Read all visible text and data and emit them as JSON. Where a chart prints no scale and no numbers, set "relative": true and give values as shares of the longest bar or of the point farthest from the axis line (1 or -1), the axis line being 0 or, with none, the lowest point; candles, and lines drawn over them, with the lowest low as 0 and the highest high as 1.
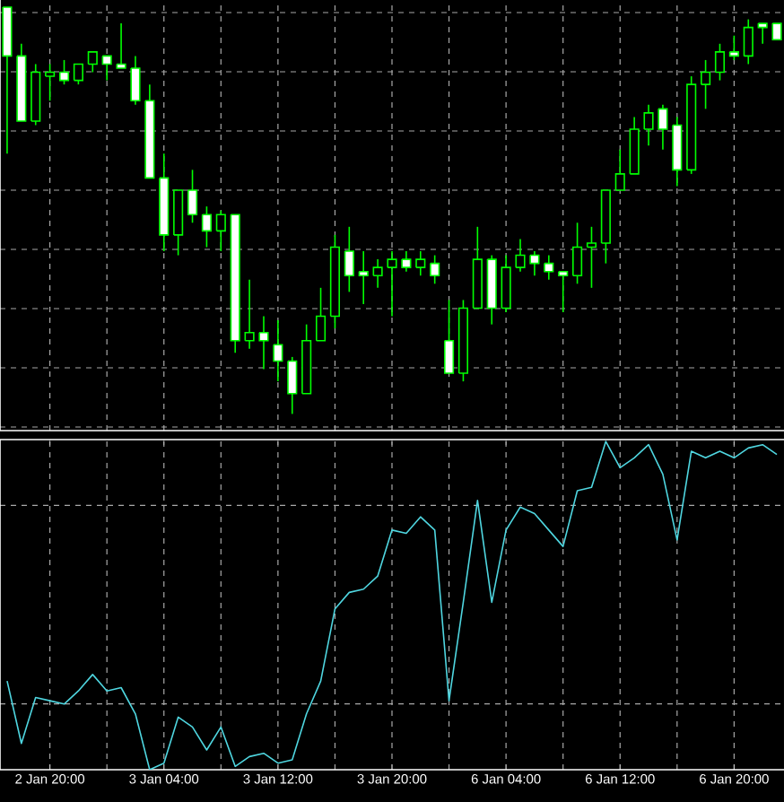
{
  "chart_data": [
    {
      "type": "candlestick",
      "relative": true,
      "color": "#00ff00",
      "grid": true,
      "tick_labels": false,
      "categories": [
        null,
        null,
        null,
        null,
        null,
        null,
        null,
        null,
        null,
        null,
        null,
        null,
        null,
        null,
        null,
        null,
        null,
        null,
        null,
        null,
        null,
        null,
        null,
        null,
        null,
        null,
        null,
        null,
        null,
        null,
        null,
        null,
        null,
        null,
        null,
        null,
        null,
        null,
        null,
        null,
        null,
        null,
        null,
        null,
        null,
        null,
        null,
        null,
        null,
        null,
        null,
        null,
        null,
        null,
        null
      ],
      "ohlc": [
        [
          1.0,
          1.0,
          0.64,
          0.88
        ],
        [
          0.88,
          0.91,
          0.72,
          0.72
        ],
        [
          0.72,
          0.86,
          0.71,
          0.84
        ],
        [
          0.83,
          0.86,
          0.77,
          0.84
        ],
        [
          0.84,
          0.87,
          0.81,
          0.82
        ],
        [
          0.82,
          0.86,
          0.81,
          0.86
        ],
        [
          0.86,
          0.89,
          0.84,
          0.89
        ],
        [
          0.88,
          0.88,
          0.82,
          0.86
        ],
        [
          0.86,
          0.96,
          0.85,
          0.85
        ],
        [
          0.85,
          0.88,
          0.76,
          0.77
        ],
        [
          0.77,
          0.81,
          0.58,
          0.58
        ],
        [
          0.58,
          0.64,
          0.4,
          0.44
        ],
        [
          0.44,
          0.55,
          0.39,
          0.55
        ],
        [
          0.55,
          0.6,
          0.47,
          0.49
        ],
        [
          0.49,
          0.51,
          0.41,
          0.45
        ],
        [
          0.45,
          0.5,
          0.4,
          0.49
        ],
        [
          0.49,
          0.49,
          0.15,
          0.18
        ],
        [
          0.18,
          0.33,
          0.16,
          0.2
        ],
        [
          0.2,
          0.24,
          0.11,
          0.18
        ],
        [
          0.17,
          0.23,
          0.08,
          0.13
        ],
        [
          0.13,
          0.14,
          0.0,
          0.05
        ],
        [
          0.05,
          0.22,
          0.05,
          0.18
        ],
        [
          0.18,
          0.31,
          0.18,
          0.24
        ],
        [
          0.24,
          0.44,
          0.21,
          0.41
        ],
        [
          0.4,
          0.46,
          0.3,
          0.34
        ],
        [
          0.35,
          0.4,
          0.27,
          0.34
        ],
        [
          0.34,
          0.38,
          0.31,
          0.36
        ],
        [
          0.36,
          0.4,
          0.24,
          0.38
        ],
        [
          0.38,
          0.4,
          0.35,
          0.36
        ],
        [
          0.36,
          0.4,
          0.34,
          0.38
        ],
        [
          0.37,
          0.39,
          0.32,
          0.34
        ],
        [
          0.18,
          0.28,
          0.1,
          0.1
        ],
        [
          0.1,
          0.28,
          0.08,
          0.26
        ],
        [
          0.26,
          0.46,
          0.26,
          0.38
        ],
        [
          0.38,
          0.39,
          0.22,
          0.26
        ],
        [
          0.26,
          0.39,
          0.25,
          0.36
        ],
        [
          0.36,
          0.43,
          0.35,
          0.39
        ],
        [
          0.39,
          0.4,
          0.34,
          0.37
        ],
        [
          0.37,
          0.39,
          0.33,
          0.35
        ],
        [
          0.35,
          0.35,
          0.25,
          0.34
        ],
        [
          0.34,
          0.47,
          0.32,
          0.41
        ],
        [
          0.41,
          0.46,
          0.31,
          0.42
        ],
        [
          0.42,
          0.55,
          0.37,
          0.55
        ],
        [
          0.55,
          0.65,
          0.55,
          0.59
        ],
        [
          0.59,
          0.73,
          0.59,
          0.7
        ],
        [
          0.7,
          0.76,
          0.66,
          0.74
        ],
        [
          0.75,
          0.76,
          0.65,
          0.7
        ],
        [
          0.71,
          0.73,
          0.56,
          0.6
        ],
        [
          0.6,
          0.83,
          0.59,
          0.81
        ],
        [
          0.81,
          0.87,
          0.75,
          0.84
        ],
        [
          0.84,
          0.91,
          0.82,
          0.89
        ],
        [
          0.89,
          0.93,
          0.87,
          0.88
        ],
        [
          0.88,
          0.97,
          0.86,
          0.95
        ],
        [
          0.96,
          0.96,
          0.91,
          0.95
        ],
        [
          0.96,
          0.96,
          0.92,
          0.92
        ]
      ]
    },
    {
      "type": "line",
      "relative": true,
      "color": "#4fd6e0",
      "grid": true,
      "tick_labels": "x",
      "categories": [
        null,
        null,
        null,
        "2 Jan 20:00",
        null,
        null,
        null,
        null,
        null,
        null,
        null,
        "3 Jan 04:00",
        null,
        null,
        null,
        null,
        null,
        null,
        null,
        "3 Jan 12:00",
        null,
        null,
        null,
        null,
        null,
        null,
        null,
        "3 Jan 20:00",
        null,
        null,
        null,
        null,
        null,
        null,
        null,
        "6 Jan 04:00",
        null,
        null,
        null,
        null,
        null,
        null,
        null,
        "6 Jan 12:00",
        null,
        null,
        null,
        null,
        null,
        null,
        null,
        "6 Jan 20:00",
        null,
        null,
        null
      ],
      "values": [
        0.27,
        0.08,
        0.22,
        0.21,
        0.2,
        0.24,
        0.29,
        0.24,
        0.25,
        0.17,
        0.0,
        0.02,
        0.16,
        0.13,
        0.06,
        0.13,
        0.01,
        0.04,
        0.05,
        0.02,
        0.03,
        0.17,
        0.27,
        0.49,
        0.54,
        0.55,
        0.59,
        0.73,
        0.72,
        0.77,
        0.73,
        0.21,
        0.51,
        0.82,
        0.51,
        0.73,
        0.8,
        0.78,
        0.73,
        0.68,
        0.85,
        0.86,
        1.0,
        0.92,
        0.95,
        0.99,
        0.9,
        0.7,
        0.97,
        0.95,
        0.97,
        0.95,
        0.98,
        0.99,
        0.96
      ]
    }
  ]
}
